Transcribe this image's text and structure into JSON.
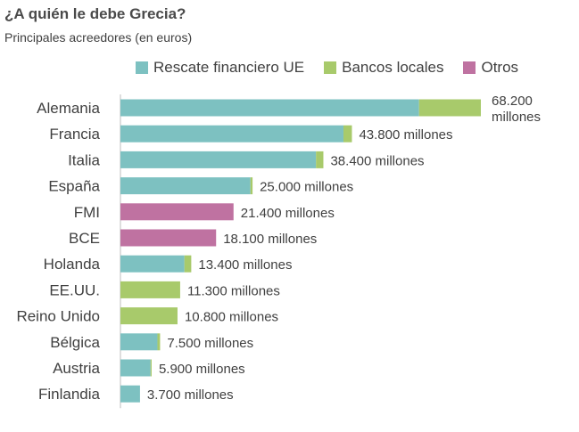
{
  "header": {
    "title": "¿A quién le debe Grecia?",
    "subtitle": "Principales acreedores (en euros)"
  },
  "colors": {
    "rescate": "#7dc1c1",
    "bancos": "#a8ca6b",
    "otros": "#bf72a1",
    "axis": "#bdbdbd",
    "text": "#404040"
  },
  "legend": [
    {
      "key": "rescate",
      "label": "Rescate financiero UE"
    },
    {
      "key": "bancos",
      "label": "Bancos locales"
    },
    {
      "key": "otros",
      "label": "Otros"
    }
  ],
  "chart_data": {
    "type": "bar",
    "orientation": "horizontal",
    "stacked": true,
    "title": "¿A quién le debe Grecia?",
    "subtitle": "Principales acreedores (en euros)",
    "unit": "millones de euros",
    "xlim": [
      0,
      70000
    ],
    "grid": false,
    "legend_position": "top",
    "categories": [
      "Alemania",
      "Francia",
      "Italia",
      "España",
      "FMI",
      "BCE",
      "Holanda",
      "EE.UU.",
      "Reino Unido",
      "Bélgica",
      "Austria",
      "Finlandia"
    ],
    "series": [
      {
        "name": "Rescate financiero UE",
        "key": "rescate",
        "values": [
          56500,
          42200,
          37000,
          24600,
          0,
          0,
          12100,
          0,
          0,
          7000,
          5700,
          3700
        ]
      },
      {
        "name": "Bancos locales",
        "key": "bancos",
        "values": [
          11700,
          1600,
          1400,
          400,
          0,
          0,
          1300,
          11300,
          10800,
          500,
          200,
          0
        ]
      },
      {
        "name": "Otros",
        "key": "otros",
        "values": [
          0,
          0,
          0,
          0,
          21400,
          18100,
          0,
          0,
          0,
          0,
          0,
          0
        ]
      }
    ],
    "data_labels": [
      [
        "68.200",
        "millones"
      ],
      [
        "43.800 millones"
      ],
      [
        "38.400 millones"
      ],
      [
        "25.000 millones"
      ],
      [
        "21.400 millones"
      ],
      [
        "18.100 millones"
      ],
      [
        "13.400 millones"
      ],
      [
        "11.300 millones"
      ],
      [
        "10.800 millones"
      ],
      [
        "7.500 millones"
      ],
      [
        "5.900 millones"
      ],
      [
        "3.700 millones"
      ]
    ]
  }
}
